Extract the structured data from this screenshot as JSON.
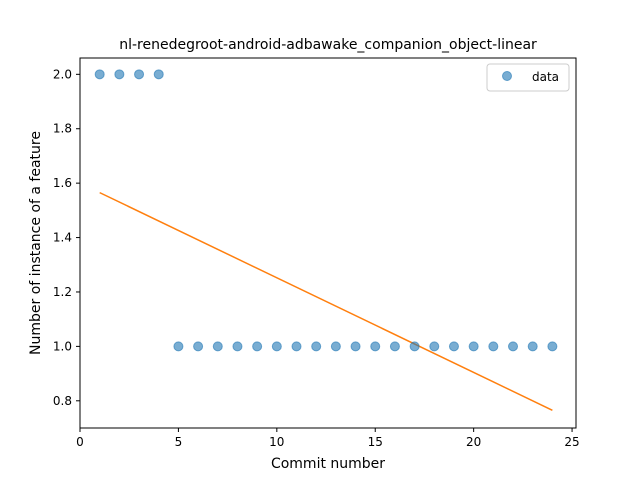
{
  "chart_data": {
    "type": "scatter",
    "title": "nl-renedegroot-android-adbawake_companion_object-linear",
    "xlabel": "Commit number",
    "ylabel": "Number of instance of a feature",
    "xlim": [
      0,
      25.2
    ],
    "ylim": [
      0.7,
      2.06
    ],
    "xticks": [
      0,
      5,
      10,
      15,
      20,
      25
    ],
    "xtick_labels": [
      "0",
      "5",
      "10",
      "15",
      "20",
      "25"
    ],
    "yticks": [
      0.8,
      1.0,
      1.2,
      1.4,
      1.6,
      1.8,
      2.0
    ],
    "ytick_labels": [
      "0.8",
      "1.0",
      "1.2",
      "1.4",
      "1.6",
      "1.8",
      "2.0"
    ],
    "grid": false,
    "legend_position": "top-right",
    "series": [
      {
        "name": "data",
        "kind": "scatter",
        "color": "#1f77b4",
        "x": [
          1,
          2,
          3,
          4,
          5,
          6,
          7,
          8,
          9,
          10,
          11,
          12,
          13,
          14,
          15,
          16,
          17,
          18,
          19,
          20,
          21,
          22,
          23,
          24
        ],
        "y": [
          2,
          2,
          2,
          2,
          1,
          1,
          1,
          1,
          1,
          1,
          1,
          1,
          1,
          1,
          1,
          1,
          1,
          1,
          1,
          1,
          1,
          1,
          1,
          1
        ]
      },
      {
        "kind": "line",
        "color": "#ff7f0e",
        "x": [
          1,
          24
        ],
        "y": [
          1.5652,
          0.7652
        ]
      }
    ]
  }
}
